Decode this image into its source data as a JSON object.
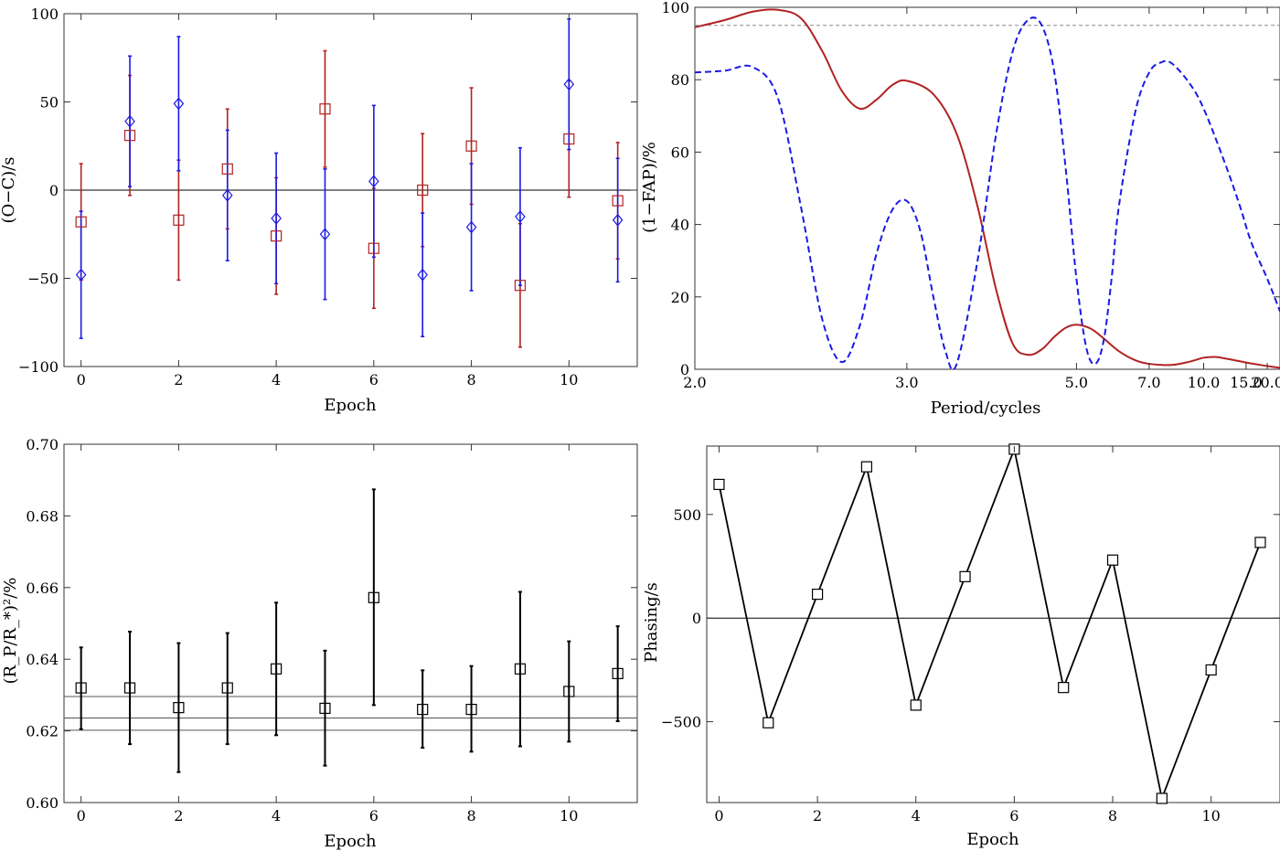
{
  "chart_data": [
    {
      "type": "scatter",
      "panel": "top-left",
      "xlabel": "Epoch",
      "ylabel": "(O−C)/s",
      "xlim": [
        -0.35,
        11.4
      ],
      "ylim": [
        -100,
        100
      ],
      "xticks": [
        0,
        2,
        4,
        6,
        8,
        10
      ],
      "yticks": [
        -100,
        -50,
        0,
        50,
        100
      ],
      "xtick_labels": [
        "0",
        "2",
        "4",
        "6",
        "8",
        "10"
      ],
      "ytick_labels": [
        "−100",
        "−50",
        "0",
        "50",
        "100"
      ],
      "reference_line_y": 0,
      "series": [
        {
          "marker": "square",
          "color": "#b22222",
          "x": [
            0,
            1,
            2,
            3,
            4,
            5,
            6,
            7,
            8,
            9,
            10,
            11
          ],
          "y": [
            -18,
            31,
            -17,
            12,
            -26,
            46,
            -33,
            0,
            25,
            -54,
            29,
            -6
          ],
          "yerr": [
            33,
            34,
            34,
            34,
            33,
            33,
            34,
            32,
            33,
            35,
            33,
            33
          ]
        },
        {
          "marker": "diamond",
          "color": "#1a1ae6",
          "x": [
            0,
            1,
            2,
            3,
            4,
            5,
            6,
            7,
            8,
            9,
            10,
            11
          ],
          "y": [
            -48,
            39,
            49,
            -3,
            -16,
            -25,
            5,
            -48,
            -21,
            -15,
            60,
            -17
          ],
          "yerr": [
            36,
            37,
            38,
            37,
            37,
            37,
            43,
            35,
            36,
            39,
            37,
            35
          ]
        }
      ]
    },
    {
      "type": "line",
      "panel": "top-right",
      "xlabel": "Period/cycles",
      "ylabel": "(1−FAP)/%",
      "xscale": "reciprocal",
      "xlim": [
        2.0,
        25.0
      ],
      "ylim": [
        0,
        100
      ],
      "xticks": [
        2.0,
        3.0,
        5.0,
        7.0,
        10.0,
        15.0,
        20.0
      ],
      "xtick_labels": [
        "2.0",
        "3.0",
        "5.0",
        "7.0",
        "10.0",
        "15.0",
        "20.0"
      ],
      "yticks": [
        0,
        20,
        40,
        60,
        80,
        100
      ],
      "ytick_labels": [
        "0",
        "20",
        "40",
        "60",
        "80",
        "100"
      ],
      "threshold_y": 95,
      "series": [
        {
          "style": "solid",
          "color": "#b22222",
          "x": [
            2.0,
            2.1,
            2.2,
            2.3,
            2.4,
            2.5,
            2.6,
            2.7,
            2.8,
            2.9,
            3.0,
            3.2,
            3.4,
            3.6,
            3.8,
            4.0,
            4.2,
            4.4,
            4.6,
            4.8,
            5.0,
            5.3,
            5.6,
            6.0,
            6.5,
            7.0,
            8.0,
            9.0,
            10.0,
            11.0,
            12.0,
            14.0,
            16.0,
            18.0,
            20.0,
            25.0
          ],
          "y": [
            94.5,
            96.5,
            98.8,
            99.3,
            97.0,
            88.0,
            77.0,
            72.0,
            74.5,
            78.5,
            79.7,
            76.0,
            65.0,
            45.0,
            22.0,
            7.0,
            4.0,
            5.5,
            9.0,
            11.5,
            12.3,
            11.2,
            8.5,
            5.0,
            2.5,
            1.5,
            1.2,
            2.1,
            3.2,
            3.4,
            3.0,
            2.2,
            1.6,
            1.2,
            0.9,
            0.4
          ]
        },
        {
          "style": "dashed",
          "color": "#1a1ae6",
          "x": [
            2.0,
            2.1,
            2.2,
            2.3,
            2.4,
            2.5,
            2.6,
            2.7,
            2.8,
            2.9,
            3.0,
            3.1,
            3.2,
            3.3,
            3.4,
            3.6,
            3.8,
            4.0,
            4.2,
            4.4,
            4.6,
            4.8,
            5.0,
            5.2,
            5.4,
            5.6,
            5.8,
            6.0,
            6.5,
            7.0,
            7.5,
            8.0,
            9.0,
            10.0,
            12.0,
            14.0,
            16.0,
            20.0,
            25.0
          ],
          "y": [
            82.0,
            82.5,
            83.5,
            75.0,
            45.0,
            14.0,
            2.0,
            12.0,
            32.0,
            44.0,
            46.5,
            38.0,
            20.0,
            5.0,
            1.5,
            30.0,
            65.0,
            88.0,
            96.5,
            95.0,
            82.0,
            55.0,
            25.0,
            6.0,
            1.5,
            8.0,
            25.0,
            45.0,
            71.0,
            82.0,
            84.8,
            84.5,
            79.0,
            72.0,
            57.0,
            45.0,
            35.0,
            25.0,
            16.0
          ]
        }
      ]
    },
    {
      "type": "scatter",
      "panel": "bottom-left",
      "xlabel": "Epoch",
      "ylabel": "(R_P/R_*)²/%",
      "xlim": [
        -0.35,
        11.4
      ],
      "ylim": [
        0.6,
        0.7
      ],
      "xticks": [
        0,
        2,
        4,
        6,
        8,
        10
      ],
      "xtick_labels": [
        "0",
        "2",
        "4",
        "6",
        "8",
        "10"
      ],
      "yticks": [
        0.6,
        0.62,
        0.64,
        0.66,
        0.68,
        0.7
      ],
      "ytick_labels": [
        "0.60",
        "0.62",
        "0.64",
        "0.66",
        "0.68",
        "0.70"
      ],
      "reference_lines_y": [
        0.6296,
        0.6236,
        0.6202
      ],
      "series": [
        {
          "marker": "square",
          "color": "#000000",
          "x": [
            0,
            1,
            2,
            3,
            4,
            5,
            6,
            7,
            8,
            9,
            10,
            11
          ],
          "y": [
            0.632,
            0.632,
            0.6265,
            0.632,
            0.6373,
            0.6263,
            0.6572,
            0.626,
            0.626,
            0.6373,
            0.631,
            0.636
          ],
          "y_low": [
            0.6205,
            0.6163,
            0.6085,
            0.6163,
            0.6188,
            0.6103,
            0.6272,
            0.6153,
            0.6142,
            0.6157,
            0.617,
            0.6227
          ],
          "y_high": [
            0.6433,
            0.6477,
            0.6445,
            0.6473,
            0.6558,
            0.6424,
            0.6874,
            0.6369,
            0.6381,
            0.6588,
            0.645,
            0.6492
          ]
        }
      ]
    },
    {
      "type": "line",
      "panel": "bottom-right",
      "xlabel": "Epoch",
      "ylabel": "Phasing/s",
      "xlim": [
        -0.25,
        11.4
      ],
      "ylim": [
        -890,
        830
      ],
      "xticks": [
        0,
        2,
        4,
        6,
        8,
        10
      ],
      "xtick_labels": [
        "0",
        "2",
        "4",
        "6",
        "8",
        "10"
      ],
      "yticks": [
        -500,
        0,
        500
      ],
      "ytick_labels": [
        "−500",
        "0",
        "500"
      ],
      "reference_line_y": 0,
      "series": [
        {
          "marker": "square",
          "color": "#000000",
          "x": [
            0,
            1,
            2,
            3,
            4,
            5,
            6,
            7,
            8,
            9,
            10,
            11
          ],
          "y": [
            645,
            -505,
            115,
            730,
            -420,
            200,
            815,
            -335,
            280,
            -870,
            -250,
            365
          ]
        }
      ]
    }
  ]
}
